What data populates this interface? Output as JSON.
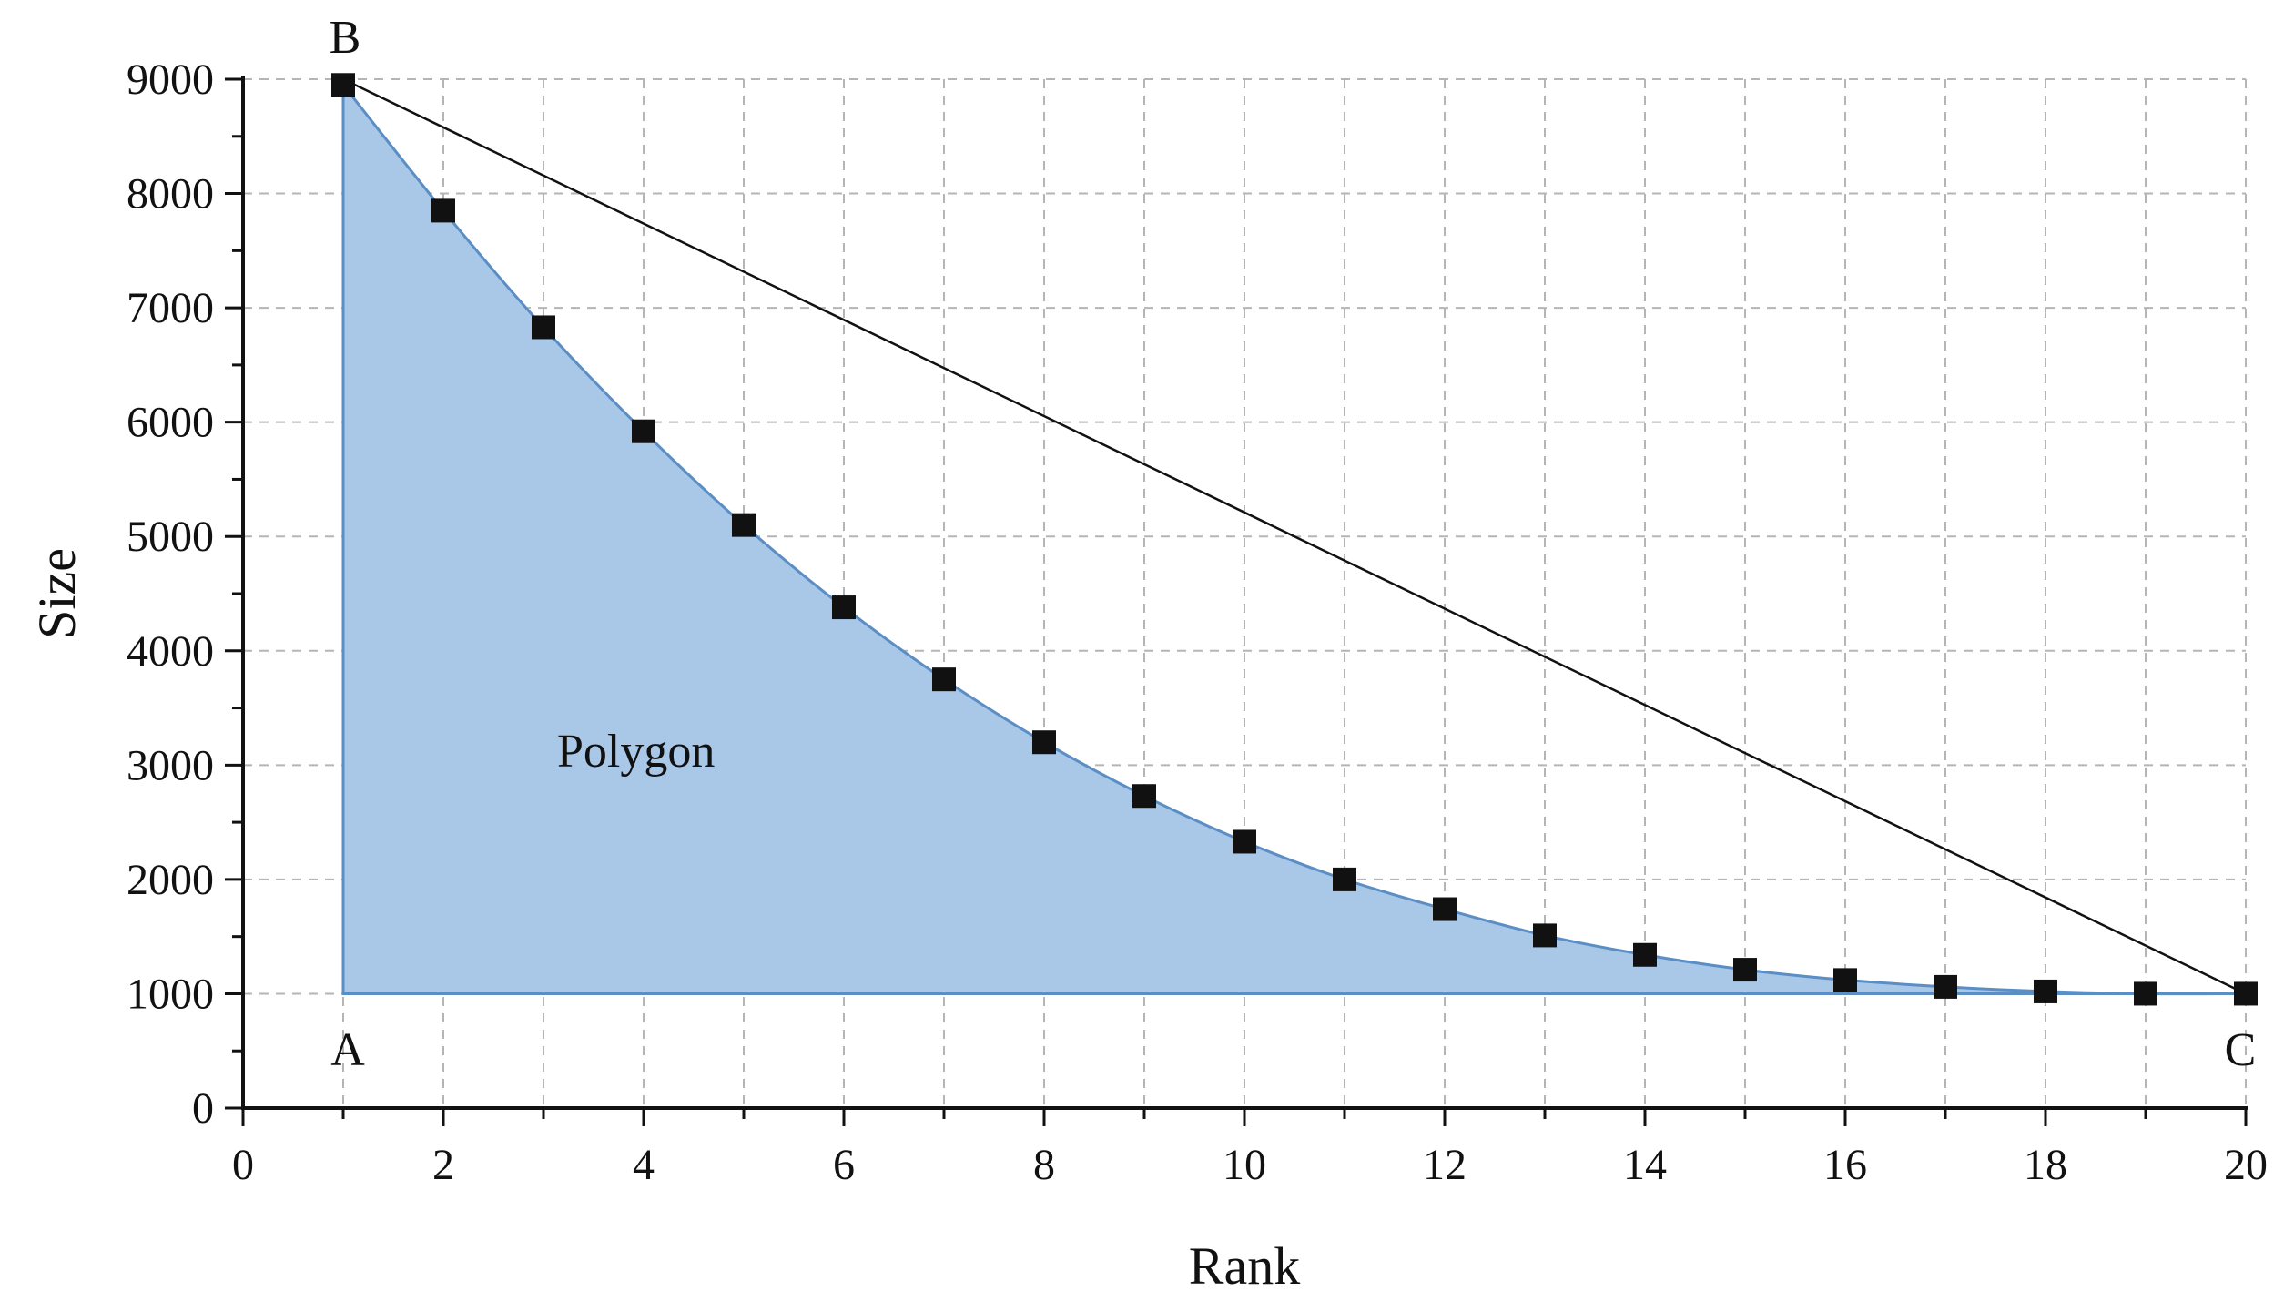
{
  "chart_data": {
    "type": "scatter",
    "xlabel": "Rank",
    "ylabel": "Size",
    "xlim": [
      0,
      20
    ],
    "ylim": [
      0,
      9000
    ],
    "x_ticks": [
      "0",
      "2",
      "4",
      "6",
      "8",
      "10",
      "12",
      "14",
      "16",
      "18",
      "20"
    ],
    "y_ticks": [
      "0",
      "1000",
      "2000",
      "3000",
      "4000",
      "5000",
      "6000",
      "7000",
      "8000",
      "9000"
    ],
    "grid": true,
    "series": [
      {
        "x": [
          1,
          2,
          3,
          4,
          5,
          6,
          7,
          8,
          9,
          10,
          11,
          12,
          13,
          14,
          15,
          16,
          17,
          18,
          19,
          20
        ],
        "values": [
          8950,
          7850,
          6830,
          5920,
          5100,
          4380,
          3750,
          3200,
          2730,
          2330,
          2000,
          1740,
          1510,
          1340,
          1210,
          1120,
          1060,
          1020,
          1000,
          1000
        ]
      }
    ],
    "polygon_line": {
      "from": [
        1,
        9000
      ],
      "to": [
        20,
        1000
      ]
    },
    "polygon_base": 1000,
    "annotations": {
      "polygon": "Polygon",
      "point_a": "A",
      "point_b": "B",
      "point_c": "C"
    },
    "colors": {
      "fill": "#a9c8e8",
      "fill_stroke": "#5b8ec4",
      "marker": "#111111",
      "grid": "#b5b5b5",
      "axis": "#111111"
    }
  }
}
